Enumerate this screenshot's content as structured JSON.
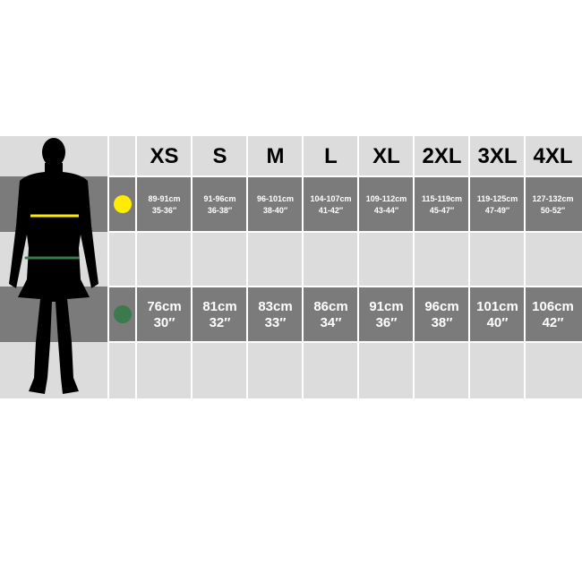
{
  "sizes": [
    "XS",
    "S",
    "M",
    "L",
    "XL",
    "2XL",
    "3XL",
    "4XL"
  ],
  "chest": {
    "color": "#ffec00",
    "cm": [
      "89-91cm",
      "91-96cm",
      "96-101cm",
      "104-107cm",
      "109-112cm",
      "115-119cm",
      "119-125cm",
      "127-132cm"
    ],
    "in": [
      "35-36″",
      "36-38″",
      "38-40″",
      "41-42″",
      "43-44″",
      "45-47″",
      "47-49″",
      "50-52″"
    ]
  },
  "waist": {
    "color": "#3a7a4c",
    "cm": [
      "76cm",
      "81cm",
      "83cm",
      "86cm",
      "91cm",
      "96cm",
      "101cm",
      "106cm"
    ],
    "in": [
      "30″",
      "32″",
      "33″",
      "34″",
      "36″",
      "38″",
      "40″",
      "42″"
    ]
  }
}
